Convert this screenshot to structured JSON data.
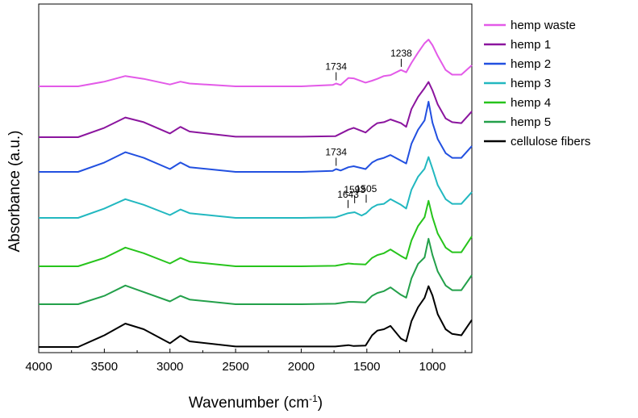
{
  "chart_data": {
    "type": "line",
    "xlabel": "Wavenumber (cm",
    "xlabel_sup": "-1",
    "xlabel_end": ")",
    "ylabel": "Absorbance (a.u.)",
    "xlim": [
      4000,
      700
    ],
    "x_reversed": true,
    "x_ticks": [
      4000,
      3500,
      3000,
      2500,
      2000,
      1500,
      1000
    ],
    "y_ticks_shown": false,
    "grid": false,
    "legend": "right",
    "series": [
      {
        "name": "hemp waste",
        "color": "#e35ae8",
        "offset": 6,
        "points": [
          [
            4000,
            0.0
          ],
          [
            3700,
            0.0
          ],
          [
            3500,
            0.1
          ],
          [
            3340,
            0.22
          ],
          [
            3200,
            0.16
          ],
          [
            3000,
            0.04
          ],
          [
            2920,
            0.1
          ],
          [
            2850,
            0.06
          ],
          [
            2500,
            0.0
          ],
          [
            2000,
            0.0
          ],
          [
            1760,
            0.03
          ],
          [
            1734,
            0.06
          ],
          [
            1700,
            0.03
          ],
          [
            1640,
            0.18
          ],
          [
            1600,
            0.17
          ],
          [
            1510,
            0.08
          ],
          [
            1460,
            0.12
          ],
          [
            1420,
            0.16
          ],
          [
            1370,
            0.22
          ],
          [
            1320,
            0.24
          ],
          [
            1240,
            0.35
          ],
          [
            1200,
            0.3
          ],
          [
            1160,
            0.5
          ],
          [
            1110,
            0.72
          ],
          [
            1060,
            0.92
          ],
          [
            1030,
            1.0
          ],
          [
            1000,
            0.88
          ],
          [
            960,
            0.65
          ],
          [
            900,
            0.35
          ],
          [
            850,
            0.25
          ],
          [
            780,
            0.25
          ],
          [
            700,
            0.45
          ]
        ]
      },
      {
        "name": "hemp 1",
        "color": "#8b159e",
        "offset": 5,
        "points": [
          [
            4000,
            0.0
          ],
          [
            3700,
            0.0
          ],
          [
            3500,
            0.2
          ],
          [
            3340,
            0.42
          ],
          [
            3200,
            0.32
          ],
          [
            3000,
            0.08
          ],
          [
            2920,
            0.22
          ],
          [
            2850,
            0.12
          ],
          [
            2500,
            0.01
          ],
          [
            2000,
            0.01
          ],
          [
            1740,
            0.02
          ],
          [
            1640,
            0.16
          ],
          [
            1600,
            0.2
          ],
          [
            1510,
            0.1
          ],
          [
            1460,
            0.22
          ],
          [
            1420,
            0.3
          ],
          [
            1370,
            0.32
          ],
          [
            1320,
            0.38
          ],
          [
            1240,
            0.3
          ],
          [
            1200,
            0.22
          ],
          [
            1160,
            0.6
          ],
          [
            1110,
            0.86
          ],
          [
            1060,
            1.05
          ],
          [
            1030,
            1.18
          ],
          [
            1000,
            1.0
          ],
          [
            960,
            0.7
          ],
          [
            900,
            0.4
          ],
          [
            850,
            0.32
          ],
          [
            780,
            0.3
          ],
          [
            700,
            0.55
          ]
        ]
      },
      {
        "name": "hemp 2",
        "color": "#2250e0",
        "offset": 4,
        "points": [
          [
            4000,
            0.0
          ],
          [
            3700,
            0.0
          ],
          [
            3500,
            0.2
          ],
          [
            3340,
            0.42
          ],
          [
            3200,
            0.3
          ],
          [
            3000,
            0.06
          ],
          [
            2920,
            0.2
          ],
          [
            2850,
            0.1
          ],
          [
            2500,
            0.0
          ],
          [
            2000,
            0.0
          ],
          [
            1760,
            0.02
          ],
          [
            1734,
            0.06
          ],
          [
            1700,
            0.03
          ],
          [
            1640,
            0.1
          ],
          [
            1600,
            0.12
          ],
          [
            1510,
            0.06
          ],
          [
            1460,
            0.2
          ],
          [
            1420,
            0.26
          ],
          [
            1370,
            0.3
          ],
          [
            1320,
            0.36
          ],
          [
            1240,
            0.24
          ],
          [
            1200,
            0.18
          ],
          [
            1160,
            0.6
          ],
          [
            1110,
            0.9
          ],
          [
            1060,
            1.1
          ],
          [
            1030,
            1.5
          ],
          [
            1000,
            1.05
          ],
          [
            960,
            0.7
          ],
          [
            900,
            0.4
          ],
          [
            850,
            0.3
          ],
          [
            780,
            0.3
          ],
          [
            700,
            0.55
          ]
        ]
      },
      {
        "name": "hemp 3",
        "color": "#22b8c0",
        "offset": 3,
        "points": [
          [
            4000,
            0.0
          ],
          [
            3700,
            0.0
          ],
          [
            3500,
            0.2
          ],
          [
            3340,
            0.4
          ],
          [
            3200,
            0.28
          ],
          [
            3000,
            0.06
          ],
          [
            2920,
            0.18
          ],
          [
            2850,
            0.1
          ],
          [
            2500,
            0.0
          ],
          [
            2000,
            0.0
          ],
          [
            1740,
            0.01
          ],
          [
            1643,
            0.1
          ],
          [
            1593,
            0.12
          ],
          [
            1540,
            0.05
          ],
          [
            1505,
            0.1
          ],
          [
            1460,
            0.22
          ],
          [
            1420,
            0.28
          ],
          [
            1370,
            0.3
          ],
          [
            1320,
            0.4
          ],
          [
            1240,
            0.28
          ],
          [
            1200,
            0.2
          ],
          [
            1160,
            0.6
          ],
          [
            1110,
            0.88
          ],
          [
            1060,
            1.05
          ],
          [
            1030,
            1.3
          ],
          [
            1000,
            1.05
          ],
          [
            960,
            0.7
          ],
          [
            900,
            0.4
          ],
          [
            850,
            0.3
          ],
          [
            780,
            0.3
          ],
          [
            700,
            0.55
          ]
        ]
      },
      {
        "name": "hemp 4",
        "color": "#27c41c",
        "offset": 2,
        "points": [
          [
            4000,
            0.0
          ],
          [
            3700,
            0.0
          ],
          [
            3500,
            0.18
          ],
          [
            3340,
            0.4
          ],
          [
            3200,
            0.28
          ],
          [
            3000,
            0.06
          ],
          [
            2920,
            0.18
          ],
          [
            2850,
            0.1
          ],
          [
            2500,
            0.0
          ],
          [
            2000,
            0.0
          ],
          [
            1740,
            0.01
          ],
          [
            1640,
            0.06
          ],
          [
            1600,
            0.05
          ],
          [
            1510,
            0.04
          ],
          [
            1460,
            0.18
          ],
          [
            1420,
            0.24
          ],
          [
            1370,
            0.28
          ],
          [
            1320,
            0.36
          ],
          [
            1240,
            0.22
          ],
          [
            1200,
            0.16
          ],
          [
            1160,
            0.55
          ],
          [
            1110,
            0.86
          ],
          [
            1060,
            1.05
          ],
          [
            1030,
            1.4
          ],
          [
            1000,
            1.05
          ],
          [
            960,
            0.7
          ],
          [
            900,
            0.4
          ],
          [
            850,
            0.3
          ],
          [
            780,
            0.3
          ],
          [
            700,
            0.64
          ]
        ]
      },
      {
        "name": "hemp 5",
        "color": "#23a04a",
        "offset": 1,
        "points": [
          [
            4000,
            0.0
          ],
          [
            3700,
            0.0
          ],
          [
            3500,
            0.18
          ],
          [
            3340,
            0.4
          ],
          [
            3200,
            0.26
          ],
          [
            3000,
            0.06
          ],
          [
            2920,
            0.18
          ],
          [
            2850,
            0.1
          ],
          [
            2500,
            0.0
          ],
          [
            2000,
            0.0
          ],
          [
            1740,
            0.01
          ],
          [
            1640,
            0.05
          ],
          [
            1600,
            0.05
          ],
          [
            1510,
            0.04
          ],
          [
            1460,
            0.18
          ],
          [
            1420,
            0.24
          ],
          [
            1370,
            0.28
          ],
          [
            1320,
            0.36
          ],
          [
            1240,
            0.2
          ],
          [
            1200,
            0.14
          ],
          [
            1160,
            0.55
          ],
          [
            1110,
            0.86
          ],
          [
            1060,
            1.0
          ],
          [
            1030,
            1.4
          ],
          [
            1000,
            1.05
          ],
          [
            960,
            0.7
          ],
          [
            900,
            0.4
          ],
          [
            850,
            0.3
          ],
          [
            780,
            0.3
          ],
          [
            700,
            0.62
          ]
        ]
      },
      {
        "name": "cellulose fibers",
        "color": "#000000",
        "offset": 0,
        "points": [
          [
            4000,
            0.0
          ],
          [
            3700,
            0.0
          ],
          [
            3500,
            0.25
          ],
          [
            3340,
            0.5
          ],
          [
            3200,
            0.38
          ],
          [
            3000,
            0.08
          ],
          [
            2920,
            0.24
          ],
          [
            2850,
            0.12
          ],
          [
            2500,
            0.01
          ],
          [
            2000,
            0.01
          ],
          [
            1740,
            0.01
          ],
          [
            1640,
            0.04
          ],
          [
            1600,
            0.02
          ],
          [
            1510,
            0.03
          ],
          [
            1460,
            0.25
          ],
          [
            1420,
            0.35
          ],
          [
            1370,
            0.38
          ],
          [
            1320,
            0.45
          ],
          [
            1240,
            0.18
          ],
          [
            1200,
            0.12
          ],
          [
            1160,
            0.55
          ],
          [
            1110,
            0.85
          ],
          [
            1060,
            1.05
          ],
          [
            1030,
            1.3
          ],
          [
            1000,
            1.1
          ],
          [
            960,
            0.7
          ],
          [
            900,
            0.38
          ],
          [
            850,
            0.28
          ],
          [
            780,
            0.25
          ],
          [
            700,
            0.58
          ]
        ]
      }
    ],
    "annotations": [
      {
        "text": "1734",
        "x": 1734,
        "series": "hemp waste"
      },
      {
        "text": "1238",
        "x": 1238,
        "series": "hemp waste"
      },
      {
        "text": "1734",
        "x": 1734,
        "series": "hemp 2"
      },
      {
        "text": "1643",
        "x": 1643,
        "series": "hemp 3"
      },
      {
        "text": "1593",
        "x": 1593,
        "series": "hemp 3"
      },
      {
        "text": "1505",
        "x": 1505,
        "series": "hemp 3"
      }
    ]
  }
}
